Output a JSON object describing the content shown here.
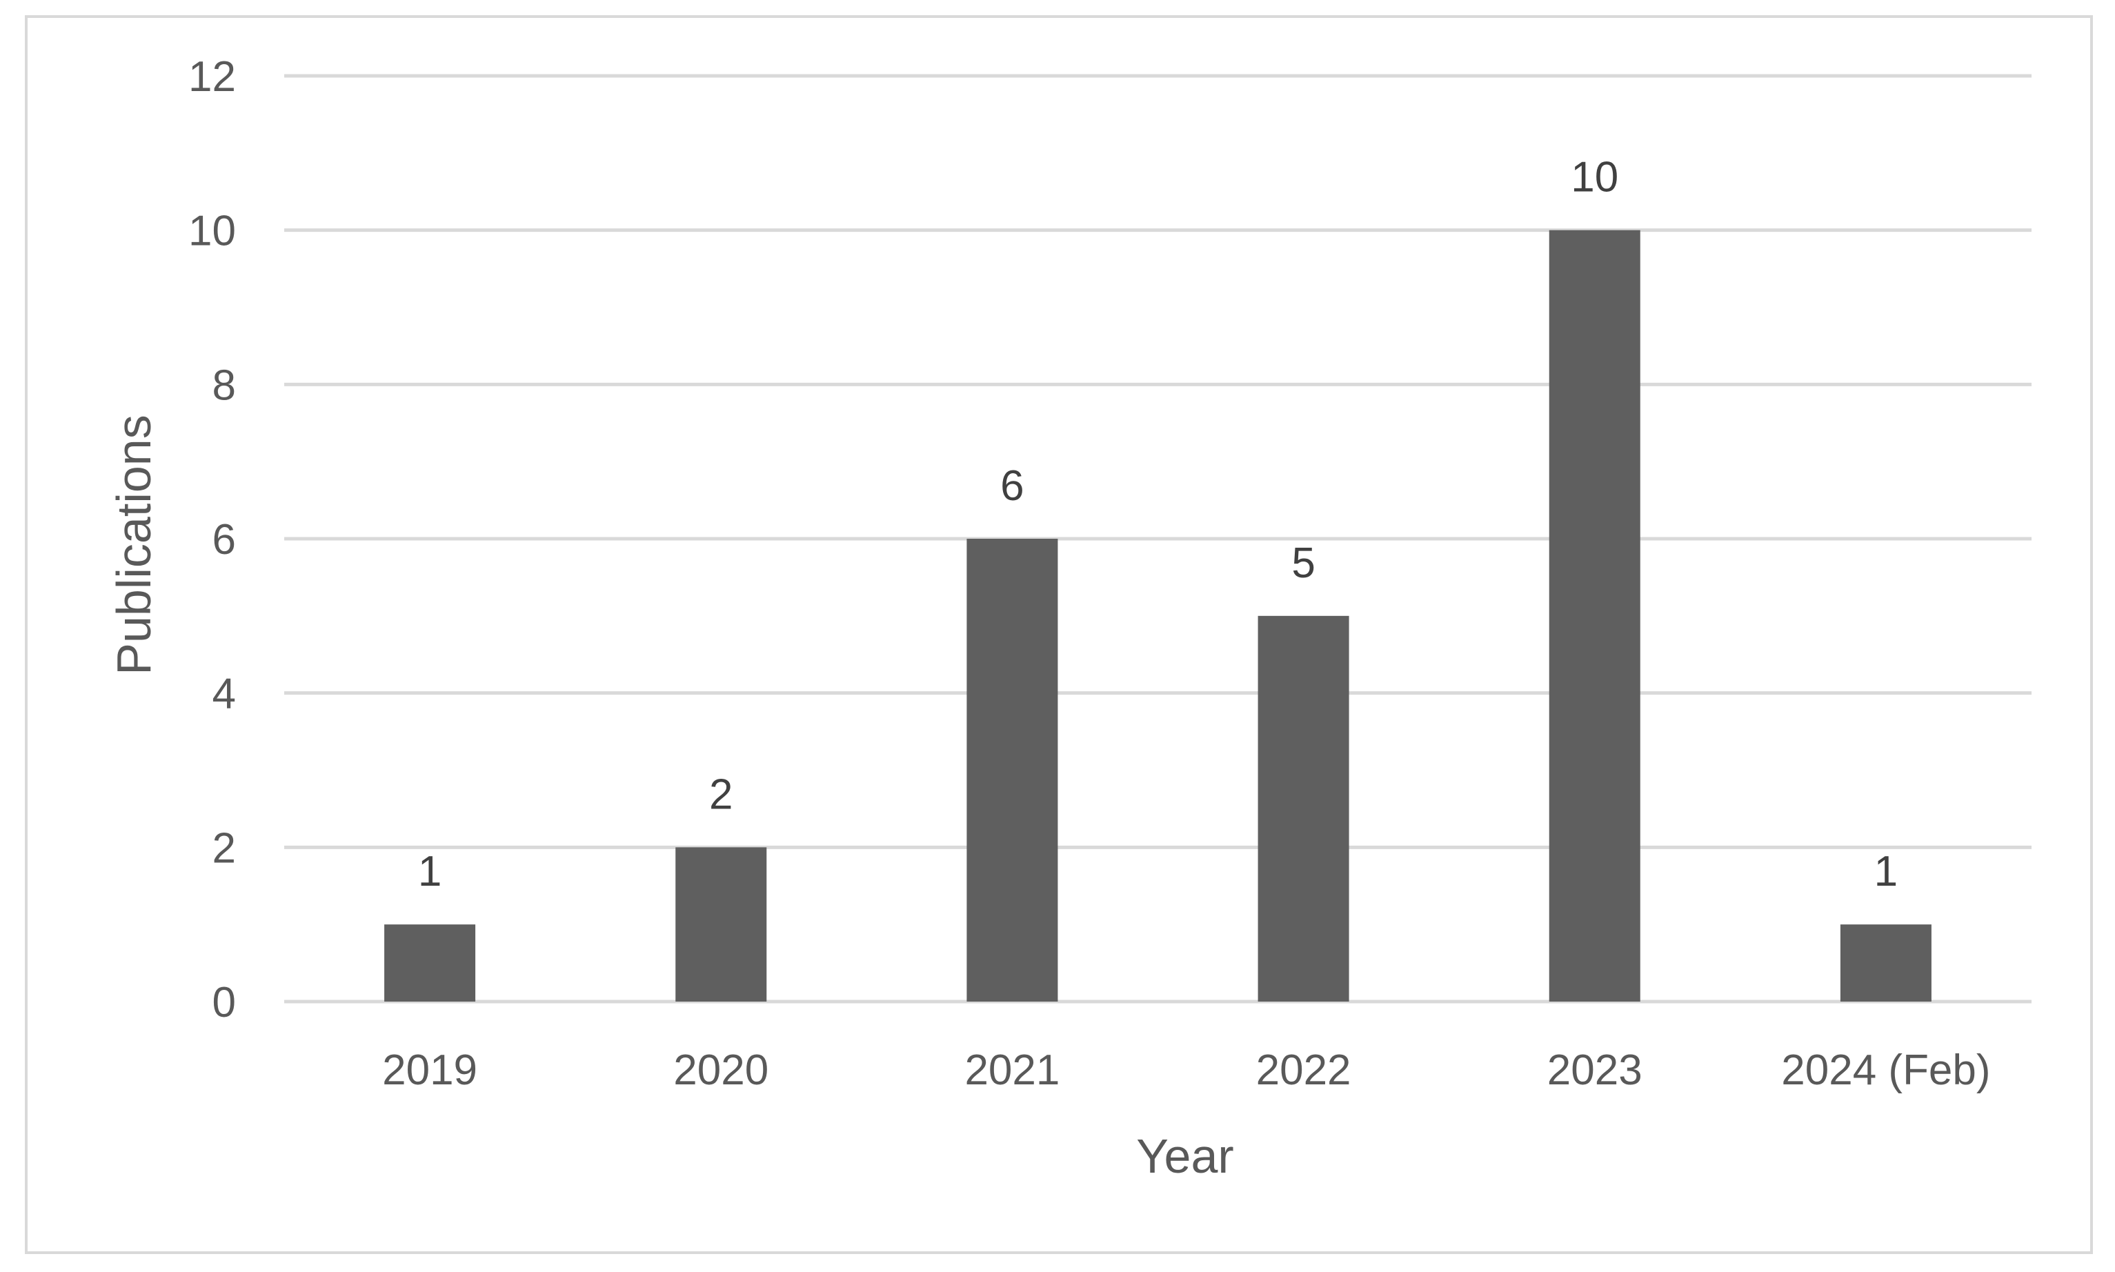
{
  "chart_data": {
    "type": "bar",
    "categories": [
      "2019",
      "2020",
      "2021",
      "2022",
      "2023",
      "2024 (Feb)"
    ],
    "values": [
      1,
      2,
      6,
      5,
      10,
      1
    ],
    "data_labels": [
      "1",
      "2",
      "6",
      "5",
      "10",
      "1"
    ],
    "title": "",
    "xlabel": "Year",
    "ylabel": "Publications",
    "ylim": [
      0,
      12
    ],
    "yticks": [
      0,
      2,
      4,
      6,
      8,
      10,
      12
    ],
    "grid": true,
    "legend": "none",
    "colors": {
      "bar": "#5f5f5f",
      "grid": "#d9d9d9",
      "frame": "#d9d9d9"
    }
  }
}
